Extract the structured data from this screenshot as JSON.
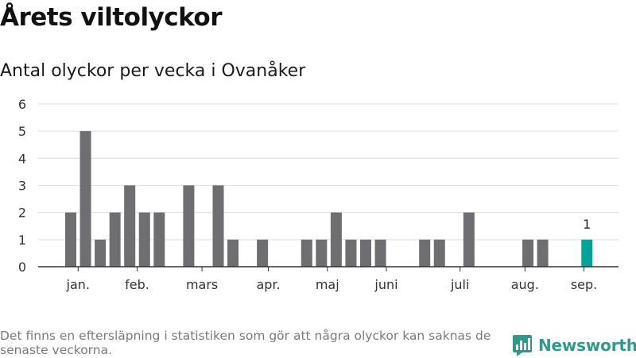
{
  "title": "Årets viltolyckor",
  "subtitle": "Antal olyckor per vecka i Ovanåker",
  "footnote": "Det finns en eftersläpning i statistiken som gör att några olyckor kan saknas de senaste veckorna.",
  "brand": {
    "name": "Newsworthy",
    "icon": "newsworthy-logo-icon"
  },
  "colors": {
    "bar": "#6d6d72",
    "highlight": "#00a598",
    "grid": "#dddddd",
    "axis": "#333333",
    "brand": "#2f9a8c"
  },
  "chart_data": {
    "type": "bar",
    "x_unit": "week",
    "x": [
      1,
      2,
      3,
      4,
      5,
      6,
      7,
      8,
      9,
      10,
      11,
      12,
      13,
      14,
      15,
      16,
      17,
      18,
      19,
      20,
      21,
      22,
      23,
      24,
      25,
      26,
      27,
      28,
      29,
      30,
      31,
      32,
      33,
      34,
      35,
      36
    ],
    "values": [
      2,
      5,
      1,
      2,
      3,
      2,
      2,
      0,
      3,
      0,
      3,
      1,
      0,
      1,
      0,
      0,
      1,
      1,
      2,
      1,
      1,
      1,
      0,
      0,
      1,
      1,
      0,
      2,
      0,
      0,
      0,
      1,
      1,
      0,
      0,
      1
    ],
    "highlight_index": 35,
    "data_labels": [
      {
        "index": 35,
        "text": "1"
      }
    ],
    "month_labels": [
      {
        "label": "jan.",
        "week": 1.5
      },
      {
        "label": "feb.",
        "week": 5.5
      },
      {
        "label": "mars",
        "week": 9.9
      },
      {
        "label": "apr.",
        "week": 14.4
      },
      {
        "label": "maj",
        "week": 18.4
      },
      {
        "label": "juni",
        "week": 22.4
      },
      {
        "label": "juli",
        "week": 27.4
      },
      {
        "label": "aug.",
        "week": 31.8
      },
      {
        "label": "sep.",
        "week": 35.8
      }
    ],
    "y_ticks": [
      0,
      1,
      2,
      3,
      4,
      5,
      6
    ],
    "ylim": [
      0,
      6
    ],
    "title": "Årets viltolyckor",
    "subtitle": "Antal olyckor per vecka i Ovanåker",
    "xlabel": "",
    "ylabel": "",
    "grid": true,
    "legend": "none"
  }
}
